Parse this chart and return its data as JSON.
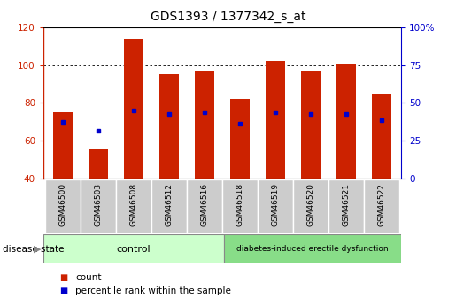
{
  "title": "GDS1393 / 1377342_s_at",
  "samples": [
    "GSM46500",
    "GSM46503",
    "GSM46508",
    "GSM46512",
    "GSM46516",
    "GSM46518",
    "GSM46519",
    "GSM46520",
    "GSM46521",
    "GSM46522"
  ],
  "count_values": [
    75,
    56,
    114,
    95,
    97,
    82,
    102,
    97,
    101,
    85
  ],
  "percentile_values": [
    70,
    65,
    76,
    74,
    75,
    69,
    75,
    74,
    74,
    71
  ],
  "ylim_left": [
    40,
    120
  ],
  "ylim_right": [
    0,
    100
  ],
  "yticks_left": [
    40,
    60,
    80,
    100,
    120
  ],
  "yticks_right": [
    0,
    25,
    50,
    75,
    100
  ],
  "ytick_labels_right": [
    "0",
    "25",
    "50",
    "75",
    "100%"
  ],
  "bar_color": "#cc2200",
  "dot_color": "#0000cc",
  "bar_bottom": 40,
  "control_label": "control",
  "disease_label": "diabetes-induced erectile dysfunction",
  "group_label": "disease state",
  "legend_count": "count",
  "legend_percentile": "percentile rank within the sample",
  "control_color": "#ccffcc",
  "disease_color": "#88dd88",
  "tick_area_color": "#cccccc",
  "bar_width": 0.55
}
